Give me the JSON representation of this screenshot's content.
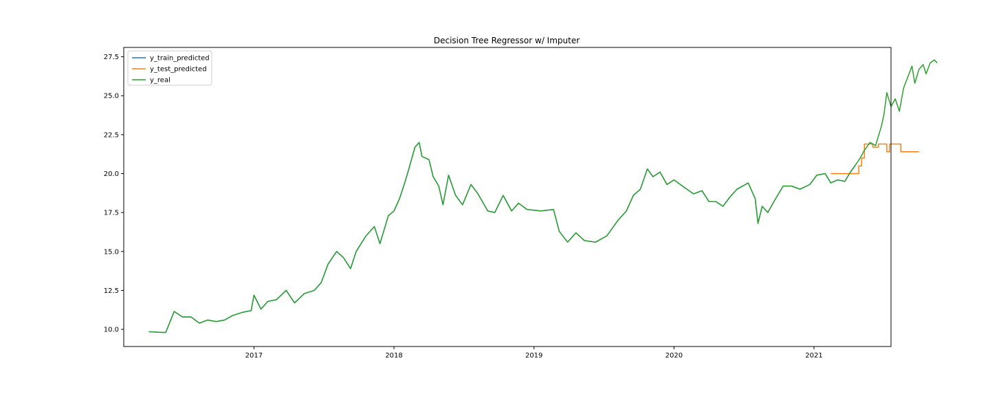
{
  "chart_data": {
    "type": "line",
    "title": "Decision Tree Regressor w/ Imputer",
    "xlabel": "",
    "ylabel": "",
    "xlim": [
      2016.07,
      2021.55
    ],
    "ylim": [
      8.9,
      28.1
    ],
    "x_ticks": [
      {
        "value": 2017,
        "label": "2017"
      },
      {
        "value": 2018,
        "label": "2018"
      },
      {
        "value": 2019,
        "label": "2019"
      },
      {
        "value": 2020,
        "label": "2020"
      },
      {
        "value": 2021,
        "label": "2021"
      }
    ],
    "y_ticks": [
      {
        "value": 10.0,
        "label": "10.0"
      },
      {
        "value": 12.5,
        "label": "12.5"
      },
      {
        "value": 15.0,
        "label": "15.0"
      },
      {
        "value": 17.5,
        "label": "17.5"
      },
      {
        "value": 20.0,
        "label": "20.0"
      },
      {
        "value": 22.5,
        "label": "22.5"
      },
      {
        "value": 25.0,
        "label": "25.0"
      },
      {
        "value": 27.5,
        "label": "27.5"
      }
    ],
    "grid": false,
    "legend": "upper-left",
    "series": [
      {
        "name": "y_train_predicted",
        "color": "#1f77b4",
        "points": [
          [
            2016.25,
            9.85
          ],
          [
            2016.31,
            9.82
          ],
          [
            2016.37,
            9.8
          ],
          [
            2016.43,
            11.15
          ],
          [
            2016.49,
            10.8
          ],
          [
            2016.55,
            10.8
          ],
          [
            2016.61,
            10.4
          ],
          [
            2016.67,
            10.6
          ],
          [
            2016.73,
            10.5
          ],
          [
            2016.79,
            10.6
          ],
          [
            2016.85,
            10.9
          ],
          [
            2016.92,
            11.1
          ],
          [
            2016.98,
            11.2
          ],
          [
            2017.0,
            12.2
          ],
          [
            2017.05,
            11.3
          ],
          [
            2017.1,
            11.8
          ],
          [
            2017.16,
            11.9
          ],
          [
            2017.23,
            12.5
          ],
          [
            2017.29,
            11.7
          ],
          [
            2017.36,
            12.3
          ],
          [
            2017.43,
            12.5
          ],
          [
            2017.48,
            13.0
          ],
          [
            2017.53,
            14.2
          ],
          [
            2017.59,
            15.0
          ],
          [
            2017.64,
            14.6
          ],
          [
            2017.69,
            13.9
          ],
          [
            2017.73,
            15.0
          ],
          [
            2017.8,
            16.0
          ],
          [
            2017.86,
            16.6
          ],
          [
            2017.9,
            15.5
          ],
          [
            2017.96,
            17.3
          ],
          [
            2018.0,
            17.6
          ],
          [
            2018.04,
            18.4
          ],
          [
            2018.08,
            19.5
          ],
          [
            2018.1,
            20.1
          ],
          [
            2018.15,
            21.7
          ],
          [
            2018.18,
            22.0
          ],
          [
            2018.2,
            21.1
          ],
          [
            2018.25,
            20.9
          ],
          [
            2018.28,
            19.8
          ],
          [
            2018.32,
            19.2
          ],
          [
            2018.35,
            18.0
          ],
          [
            2018.39,
            19.9
          ],
          [
            2018.44,
            18.6
          ],
          [
            2018.49,
            18.0
          ],
          [
            2018.55,
            19.3
          ],
          [
            2018.6,
            18.7
          ],
          [
            2018.67,
            17.6
          ],
          [
            2018.72,
            17.5
          ],
          [
            2018.78,
            18.6
          ],
          [
            2018.84,
            17.6
          ],
          [
            2018.89,
            18.1
          ],
          [
            2018.95,
            17.7
          ],
          [
            2019.05,
            17.6
          ],
          [
            2019.14,
            17.7
          ],
          [
            2019.18,
            16.3
          ],
          [
            2019.24,
            15.6
          ],
          [
            2019.3,
            16.2
          ],
          [
            2019.36,
            15.7
          ],
          [
            2019.44,
            15.6
          ],
          [
            2019.52,
            16.0
          ],
          [
            2019.6,
            17.0
          ],
          [
            2019.66,
            17.6
          ],
          [
            2019.71,
            18.6
          ],
          [
            2019.76,
            19.0
          ],
          [
            2019.81,
            20.3
          ],
          [
            2019.85,
            19.8
          ],
          [
            2019.9,
            20.1
          ],
          [
            2019.95,
            19.3
          ],
          [
            2020.0,
            19.6
          ],
          [
            2020.06,
            19.2
          ],
          [
            2020.14,
            18.7
          ],
          [
            2020.2,
            18.9
          ],
          [
            2020.25,
            18.2
          ],
          [
            2020.3,
            18.2
          ],
          [
            2020.35,
            17.9
          ],
          [
            2020.4,
            18.5
          ],
          [
            2020.45,
            19.0
          ],
          [
            2020.53,
            19.4
          ],
          [
            2020.58,
            18.4
          ],
          [
            2020.6,
            16.8
          ],
          [
            2020.63,
            17.9
          ],
          [
            2020.67,
            17.5
          ],
          [
            2020.72,
            18.3
          ],
          [
            2020.78,
            19.2
          ],
          [
            2020.84,
            19.2
          ],
          [
            2020.9,
            19.0
          ],
          [
            2020.97,
            19.3
          ],
          [
            2021.02,
            19.9
          ],
          [
            2021.08,
            20.0
          ],
          [
            2021.12,
            19.4
          ],
          [
            2021.17,
            19.6
          ],
          [
            2021.22,
            19.5
          ],
          [
            2021.26,
            20.1
          ],
          [
            2021.3,
            20.6
          ]
        ]
      },
      {
        "name": "y_test_predicted",
        "color": "#ff7f0e",
        "points": [
          [
            2021.12,
            20.0
          ],
          [
            2021.32,
            20.0
          ],
          [
            2021.32,
            20.5
          ],
          [
            2021.34,
            20.5
          ],
          [
            2021.34,
            21.0
          ],
          [
            2021.36,
            21.0
          ],
          [
            2021.36,
            21.9
          ],
          [
            2021.42,
            21.9
          ],
          [
            2021.42,
            21.7
          ],
          [
            2021.46,
            21.7
          ],
          [
            2021.46,
            21.9
          ],
          [
            2021.52,
            21.9
          ],
          [
            2021.52,
            21.4
          ],
          [
            2021.54,
            21.4
          ],
          [
            2021.54,
            21.9
          ],
          [
            2021.62,
            21.9
          ],
          [
            2021.62,
            21.4
          ],
          [
            2021.75,
            21.4
          ]
        ]
      },
      {
        "name": "y_real",
        "color": "#2ca02c",
        "points": [
          [
            2016.25,
            9.85
          ],
          [
            2016.31,
            9.82
          ],
          [
            2016.37,
            9.8
          ],
          [
            2016.43,
            11.15
          ],
          [
            2016.49,
            10.8
          ],
          [
            2016.55,
            10.8
          ],
          [
            2016.61,
            10.4
          ],
          [
            2016.67,
            10.6
          ],
          [
            2016.73,
            10.5
          ],
          [
            2016.79,
            10.6
          ],
          [
            2016.85,
            10.9
          ],
          [
            2016.92,
            11.1
          ],
          [
            2016.98,
            11.2
          ],
          [
            2017.0,
            12.2
          ],
          [
            2017.05,
            11.3
          ],
          [
            2017.1,
            11.8
          ],
          [
            2017.16,
            11.9
          ],
          [
            2017.23,
            12.5
          ],
          [
            2017.29,
            11.7
          ],
          [
            2017.36,
            12.3
          ],
          [
            2017.43,
            12.5
          ],
          [
            2017.48,
            13.0
          ],
          [
            2017.53,
            14.2
          ],
          [
            2017.59,
            15.0
          ],
          [
            2017.64,
            14.6
          ],
          [
            2017.69,
            13.9
          ],
          [
            2017.73,
            15.0
          ],
          [
            2017.8,
            16.0
          ],
          [
            2017.86,
            16.6
          ],
          [
            2017.9,
            15.5
          ],
          [
            2017.96,
            17.3
          ],
          [
            2018.0,
            17.6
          ],
          [
            2018.04,
            18.4
          ],
          [
            2018.08,
            19.5
          ],
          [
            2018.1,
            20.1
          ],
          [
            2018.15,
            21.7
          ],
          [
            2018.18,
            22.0
          ],
          [
            2018.2,
            21.1
          ],
          [
            2018.25,
            20.9
          ],
          [
            2018.28,
            19.8
          ],
          [
            2018.32,
            19.2
          ],
          [
            2018.35,
            18.0
          ],
          [
            2018.39,
            19.9
          ],
          [
            2018.44,
            18.6
          ],
          [
            2018.49,
            18.0
          ],
          [
            2018.55,
            19.3
          ],
          [
            2018.6,
            18.7
          ],
          [
            2018.67,
            17.6
          ],
          [
            2018.72,
            17.5
          ],
          [
            2018.78,
            18.6
          ],
          [
            2018.84,
            17.6
          ],
          [
            2018.89,
            18.1
          ],
          [
            2018.95,
            17.7
          ],
          [
            2019.05,
            17.6
          ],
          [
            2019.14,
            17.7
          ],
          [
            2019.18,
            16.3
          ],
          [
            2019.24,
            15.6
          ],
          [
            2019.3,
            16.2
          ],
          [
            2019.36,
            15.7
          ],
          [
            2019.44,
            15.6
          ],
          [
            2019.52,
            16.0
          ],
          [
            2019.6,
            17.0
          ],
          [
            2019.66,
            17.6
          ],
          [
            2019.71,
            18.6
          ],
          [
            2019.76,
            19.0
          ],
          [
            2019.81,
            20.3
          ],
          [
            2019.85,
            19.8
          ],
          [
            2019.9,
            20.1
          ],
          [
            2019.95,
            19.3
          ],
          [
            2020.0,
            19.6
          ],
          [
            2020.06,
            19.2
          ],
          [
            2020.14,
            18.7
          ],
          [
            2020.2,
            18.9
          ],
          [
            2020.25,
            18.2
          ],
          [
            2020.3,
            18.2
          ],
          [
            2020.35,
            17.9
          ],
          [
            2020.4,
            18.5
          ],
          [
            2020.45,
            19.0
          ],
          [
            2020.53,
            19.4
          ],
          [
            2020.58,
            18.4
          ],
          [
            2020.6,
            16.8
          ],
          [
            2020.63,
            17.9
          ],
          [
            2020.67,
            17.5
          ],
          [
            2020.72,
            18.3
          ],
          [
            2020.78,
            19.2
          ],
          [
            2020.84,
            19.2
          ],
          [
            2020.9,
            19.0
          ],
          [
            2020.97,
            19.3
          ],
          [
            2021.02,
            19.9
          ],
          [
            2021.08,
            20.0
          ],
          [
            2021.12,
            19.4
          ],
          [
            2021.17,
            19.6
          ],
          [
            2021.22,
            19.5
          ],
          [
            2021.26,
            20.1
          ],
          [
            2021.3,
            20.6
          ],
          [
            2021.33,
            21.0
          ],
          [
            2021.36,
            21.5
          ],
          [
            2021.4,
            22.0
          ],
          [
            2021.44,
            21.8
          ],
          [
            2021.48,
            23.0
          ],
          [
            2021.5,
            23.8
          ],
          [
            2021.52,
            25.2
          ],
          [
            2021.55,
            24.3
          ],
          [
            2021.58,
            24.8
          ],
          [
            2021.61,
            24.0
          ],
          [
            2021.64,
            25.5
          ],
          [
            2021.67,
            26.2
          ],
          [
            2021.7,
            26.9
          ],
          [
            2021.72,
            25.8
          ],
          [
            2021.75,
            26.7
          ],
          [
            2021.78,
            27.0
          ],
          [
            2021.8,
            26.4
          ],
          [
            2021.83,
            27.1
          ],
          [
            2021.86,
            27.3
          ],
          [
            2021.88,
            27.1
          ]
        ]
      }
    ]
  }
}
